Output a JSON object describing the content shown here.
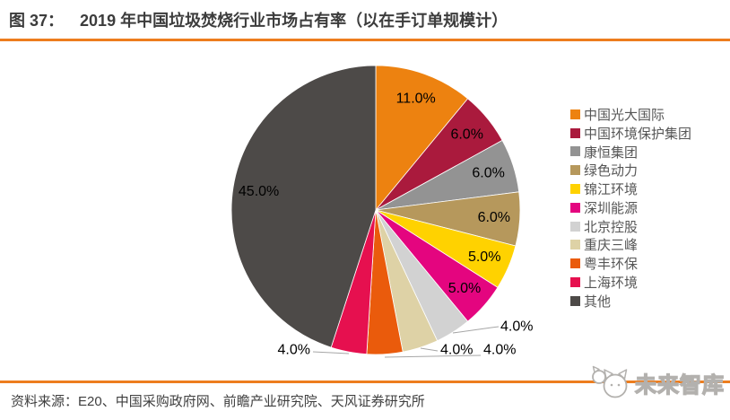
{
  "header": {
    "figure_label": "图 37：",
    "title": "2019 年中国垃圾焚烧行业市场占有率（以在手订单规模计）"
  },
  "footer": {
    "source": "资料来源：E20、中国采购政府网、前瞻产业研究院、天风证券研究所",
    "logo_text": "未来智库"
  },
  "colors": {
    "accent_rule": "#ED7D1E",
    "title_text": "#3C3C3C",
    "source_text": "#3F3F3F",
    "pie_label_text": "#000000",
    "leader_line": "#A6A6A6",
    "legend_text": "#565656"
  },
  "chart_data": {
    "type": "pie",
    "title": "2019 年中国垃圾焚烧行业市场占有率（以在手订单规模计）",
    "unit": "%",
    "start_angle_deg": 0,
    "direction": "clockwise",
    "legend_position": "right",
    "slices": [
      {
        "label": "中国光大国际",
        "value": 11.0,
        "display": "11.0%",
        "color": "#ED8210",
        "label_placement": "inside"
      },
      {
        "label": "中国环境保护集团",
        "value": 6.0,
        "display": "6.0%",
        "color": "#AA1A3D",
        "label_placement": "inside"
      },
      {
        "label": "康恒集团",
        "value": 6.0,
        "display": "6.0%",
        "color": "#939393",
        "label_placement": "inside"
      },
      {
        "label": "绿色动力",
        "value": 6.0,
        "display": "6.0%",
        "color": "#B6985C",
        "label_placement": "inside"
      },
      {
        "label": "锦江环境",
        "value": 5.0,
        "display": "5.0%",
        "color": "#FFD200",
        "label_placement": "inside"
      },
      {
        "label": "深圳能源",
        "value": 5.0,
        "display": "5.0%",
        "color": "#E4057F",
        "label_placement": "inside"
      },
      {
        "label": "北京控股",
        "value": 4.0,
        "display": "4.0%",
        "color": "#D2D2D2",
        "label_placement": "outside"
      },
      {
        "label": "重庆三峰",
        "value": 4.0,
        "display": "4.0%",
        "color": "#DED2A6",
        "label_placement": "outside"
      },
      {
        "label": "粤丰环保",
        "value": 4.0,
        "display": "4.0%",
        "color": "#EA5B0C",
        "label_placement": "outside"
      },
      {
        "label": "上海环境",
        "value": 4.0,
        "display": "4.0%",
        "color": "#E6104F",
        "label_placement": "outside"
      },
      {
        "label": "其他",
        "value": 45.0,
        "display": "45.0%",
        "color": "#4D4A48",
        "label_placement": "inside"
      }
    ]
  }
}
